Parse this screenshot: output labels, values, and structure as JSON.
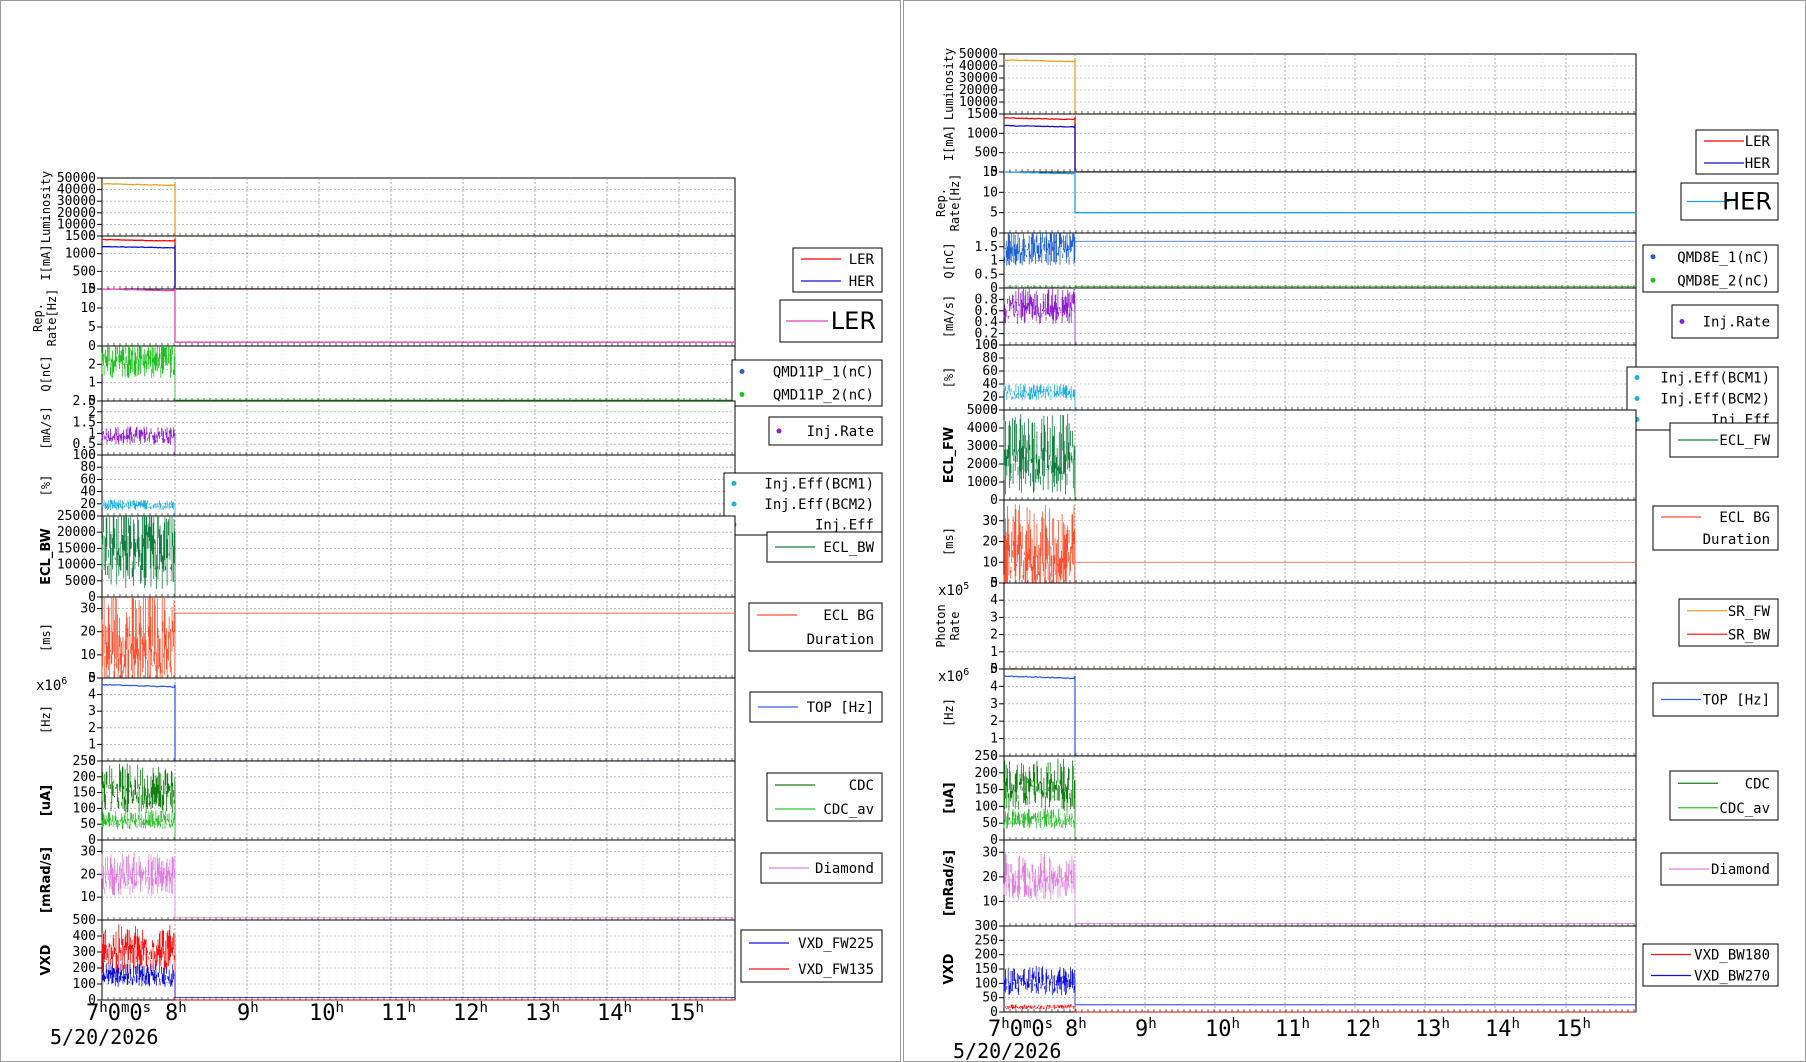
{
  "colors": {
    "luminosity": "#e8a020",
    "ler": "#ff0000",
    "her": "#1010c8",
    "rep_ler": "#e040c0",
    "rep_her": "#20a0e0",
    "q1": "#2060d0",
    "q2": "#20c020",
    "injrate": "#9020d0",
    "injeff": "#20b0e0",
    "ecl": "#108040",
    "eclbg": "#ff5030",
    "top": "#3060e0",
    "cdc": "#108010",
    "cdc_av": "#30c030",
    "diamond": "#e080e0",
    "vxd_a": "#1010e0",
    "vxd_b": "#ff1010",
    "sr_fw": "#f0a020",
    "sr_bw": "#ff2020"
  },
  "chart_data": [
    {
      "type": "line",
      "name": "left",
      "date_label": "5/20/2026",
      "x_ticks": [
        "7h0m0s",
        "8h",
        "9h",
        "10h",
        "11h",
        "12h",
        "13h",
        "14h",
        "15h"
      ],
      "panels": [
        {
          "id": "lum",
          "ylabel": "Luminosity",
          "ylim": [
            0,
            50000
          ],
          "yticks": [
            "50000",
            "40000",
            "30000",
            "20000",
            "10000",
            "0"
          ],
          "legend": [],
          "series": [
            {
              "color": "luminosity",
              "before": 45000,
              "after": 0
            }
          ]
        },
        {
          "id": "cur",
          "ylabel": "I[mA]",
          "ylim": [
            0,
            1500
          ],
          "yticks": [
            "1500",
            "1000",
            "500",
            "0"
          ],
          "legend": [
            {
              "label": "LER",
              "color": "ler"
            },
            {
              "label": "HER",
              "color": "her"
            }
          ],
          "series": [
            {
              "color": "ler",
              "before": 1400,
              "after": 0
            },
            {
              "color": "her",
              "before": 1200,
              "after": 0
            }
          ]
        },
        {
          "id": "rep",
          "ylabel": "Rep.\nRate[Hz]",
          "ylim": [
            0,
            15
          ],
          "yticks": [
            "15",
            "10",
            "5",
            "0"
          ],
          "legend": [
            {
              "label": "LER",
              "color": "rep_ler",
              "big": true
            }
          ],
          "series": [
            {
              "color": "rep_ler",
              "before": 15,
              "after": 1
            }
          ]
        },
        {
          "id": "q",
          "ylabel": "Q[nC]",
          "ylim": [
            0,
            3
          ],
          "yticks": [
            "2",
            "1",
            "0"
          ],
          "legend": [
            {
              "label": "QMD11P_1(nC)",
              "color": "q1",
              "dot": true
            },
            {
              "label": "QMD11P_2(nC)",
              "color": "q2",
              "dot": true
            }
          ],
          "series": [
            {
              "color": "q2",
              "before": 2.6,
              "after": 0.05
            }
          ]
        },
        {
          "id": "injr",
          "ylabel": "[mA/s]",
          "ylim": [
            0,
            2.5
          ],
          "yticks": [
            "2.5",
            "2",
            "1.5",
            "1",
            "0.5",
            "0"
          ],
          "legend": [
            {
              "label": "Inj.Rate",
              "color": "injrate",
              "dot": true
            }
          ],
          "series": [
            {
              "color": "injrate",
              "before": 1.0,
              "after": 0.0
            }
          ]
        },
        {
          "id": "eff",
          "ylabel": "[%]",
          "ylim": [
            0,
            100
          ],
          "yticks": [
            "100",
            "80",
            "60",
            "40",
            "20",
            "0"
          ],
          "legend": [
            {
              "label": "Inj.Eff(BCM1)",
              "color": "injeff",
              "dot": true
            },
            {
              "label": "Inj.Eff(BCM2)",
              "color": "injeff",
              "dot": true
            },
            {
              "label": "Inj.Eff",
              "color": "injeff",
              "dot": true
            }
          ],
          "series": [
            {
              "color": "injeff",
              "before": 20,
              "after": 0
            }
          ]
        },
        {
          "id": "ecl",
          "ylabel": "ECL_BW",
          "ylim": [
            0,
            25000
          ],
          "yticks": [
            "25000",
            "20000",
            "15000",
            "10000",
            "5000",
            "0"
          ],
          "legend": [
            {
              "label": "ECL_BW",
              "color": "ecl"
            }
          ],
          "series": [
            {
              "color": "ecl",
              "before": 20000,
              "after": 0
            }
          ]
        },
        {
          "id": "eclbg",
          "ylabel": "[ms]",
          "ylim": [
            0,
            35
          ],
          "yticks": [
            "30",
            "20",
            "10",
            "0"
          ],
          "legend": [
            {
              "label": "ECL BG",
              "color": "eclbg"
            },
            {
              "label": "Duration",
              "color": ""
            }
          ],
          "series": [
            {
              "color": "eclbg",
              "before": 20,
              "after": 28
            }
          ]
        },
        {
          "id": "top",
          "ylabel": "[Hz]",
          "mult": "x10^6",
          "ylim": [
            0,
            5
          ],
          "yticks": [
            "5",
            "4",
            "3",
            "2",
            "1",
            "0"
          ],
          "legend": [
            {
              "label": "TOP [Hz]",
              "color": "top"
            }
          ],
          "series": [
            {
              "color": "top",
              "before": 4.6,
              "after": 0
            }
          ]
        },
        {
          "id": "cdc",
          "ylabel": "[uA]",
          "ylim": [
            0,
            250
          ],
          "yticks": [
            "250",
            "200",
            "150",
            "100",
            "50",
            "0"
          ],
          "legend": [
            {
              "label": "CDC",
              "color": "cdc"
            },
            {
              "label": "CDC_av",
              "color": "cdc_av"
            }
          ],
          "series": [
            {
              "color": "cdc",
              "before": 180,
              "after": 0
            },
            {
              "color": "cdc_av",
              "before": 70,
              "after": 0
            }
          ]
        },
        {
          "id": "dia",
          "ylabel": "[mRad/s]",
          "ylim": [
            0,
            35
          ],
          "yticks": [
            "30",
            "20",
            "10"
          ],
          "legend": [
            {
              "label": "Diamond",
              "color": "diamond"
            }
          ],
          "series": [
            {
              "color": "diamond",
              "before": 22,
              "after": 1
            }
          ]
        },
        {
          "id": "vxd",
          "ylabel": "VXD",
          "ylim": [
            0,
            500
          ],
          "yticks": [
            "500",
            "400",
            "300",
            "200",
            "100",
            "0"
          ],
          "legend": [
            {
              "label": "VXD_FW225",
              "color": "vxd_a"
            },
            {
              "label": "VXD_FW135",
              "color": "vxd_b"
            }
          ],
          "series": [
            {
              "color": "vxd_b",
              "before": 350,
              "after": 0
            },
            {
              "color": "vxd_a",
              "before": 170,
              "after": 15
            }
          ]
        }
      ]
    },
    {
      "type": "line",
      "name": "right",
      "date_label": "5/20/2026",
      "x_ticks": [
        "7h0m0s",
        "8h",
        "9h",
        "10h",
        "11h",
        "12h",
        "13h",
        "14h",
        "15h"
      ],
      "panels": [
        {
          "id": "lum",
          "ylabel": "Luminosity",
          "ylim": [
            0,
            50000
          ],
          "yticks": [
            "50000",
            "40000",
            "30000",
            "20000",
            "10000",
            "0"
          ],
          "legend": [],
          "series": [
            {
              "color": "luminosity",
              "before": 45000,
              "after": 0
            }
          ]
        },
        {
          "id": "cur",
          "ylabel": "I[mA]",
          "ylim": [
            0,
            1500
          ],
          "yticks": [
            "1500",
            "1000",
            "500",
            "0"
          ],
          "legend": [
            {
              "label": "LER",
              "color": "ler"
            },
            {
              "label": "HER",
              "color": "her"
            }
          ],
          "series": [
            {
              "color": "ler",
              "before": 1400,
              "after": 0
            },
            {
              "color": "her",
              "before": 1200,
              "after": 0
            }
          ]
        },
        {
          "id": "rep",
          "ylabel": "Rep.\nRate[Hz]",
          "ylim": [
            0,
            15
          ],
          "yticks": [
            "15",
            "10",
            "5",
            "0"
          ],
          "legend": [
            {
              "label": "HER",
              "color": "rep_her",
              "big": true
            }
          ],
          "series": [
            {
              "color": "rep_her",
              "before": 15,
              "after": 5
            }
          ]
        },
        {
          "id": "q",
          "ylabel": "Q[nC]",
          "ylim": [
            0,
            2
          ],
          "yticks": [
            "1.5",
            "1",
            "0.5",
            "0"
          ],
          "legend": [
            {
              "label": "QMD8E_1(nC)",
              "color": "q1",
              "dot": true
            },
            {
              "label": "QMD8E_2(nC)",
              "color": "q2",
              "dot": true
            }
          ],
          "series": [
            {
              "color": "q1",
              "before": 1.7,
              "after": 1.7
            },
            {
              "color": "q2",
              "before": 0.05,
              "after": 0.05
            }
          ]
        },
        {
          "id": "injr",
          "ylabel": "[mA/s]",
          "ylim": [
            0,
            1
          ],
          "yticks": [
            "0.8",
            "0.6",
            "0.4",
            "0.2",
            "0"
          ],
          "legend": [
            {
              "label": "Inj.Rate",
              "color": "injrate",
              "dot": true
            }
          ],
          "series": [
            {
              "color": "injrate",
              "before": 0.75,
              "after": 0.0
            }
          ]
        },
        {
          "id": "eff",
          "ylabel": "[%]",
          "ylim": [
            0,
            100
          ],
          "yticks": [
            "100",
            "80",
            "60",
            "40",
            "20",
            "0"
          ],
          "legend": [
            {
              "label": "Inj.Eff(BCM1)",
              "color": "injeff",
              "dot": true
            },
            {
              "label": "Inj.Eff(BCM2)",
              "color": "injeff",
              "dot": true
            },
            {
              "label": "Inj.Eff",
              "color": "injeff",
              "dot": true
            }
          ],
          "series": [
            {
              "color": "injeff",
              "before": 30,
              "after": 0
            }
          ]
        },
        {
          "id": "ecl",
          "ylabel": "ECL_FW",
          "ylim": [
            0,
            5000
          ],
          "yticks": [
            "5000",
            "4000",
            "3000",
            "2000",
            "1000",
            "0"
          ],
          "legend": [
            {
              "label": "ECL_FW",
              "color": "ecl"
            }
          ],
          "series": [
            {
              "color": "ecl",
              "before": 3000,
              "after": 0
            }
          ]
        },
        {
          "id": "eclbg",
          "ylabel": "[ms]",
          "ylim": [
            0,
            40
          ],
          "yticks": [
            "30",
            "20",
            "10",
            "0"
          ],
          "legend": [
            {
              "label": "ECL BG",
              "color": "eclbg"
            },
            {
              "label": "Duration",
              "color": ""
            }
          ],
          "series": [
            {
              "color": "eclbg",
              "before": 20,
              "after": 10
            }
          ]
        },
        {
          "id": "sr",
          "ylabel": "Photon\nRate",
          "mult": "x10^5",
          "ylim": [
            0,
            5
          ],
          "yticks": [
            "5",
            "4",
            "3",
            "2",
            "1",
            "0"
          ],
          "legend": [
            {
              "label": "SR_FW",
              "color": "sr_fw"
            },
            {
              "label": "SR_BW",
              "color": "sr_bw"
            }
          ],
          "series": [
            {
              "color": "sr_fw",
              "before": 0,
              "after": 0
            }
          ]
        },
        {
          "id": "top",
          "ylabel": "[Hz]",
          "mult": "x10^6",
          "ylim": [
            0,
            5
          ],
          "yticks": [
            "5",
            "4",
            "3",
            "2",
            "1",
            "0"
          ],
          "legend": [
            {
              "label": "TOP [Hz]",
              "color": "top"
            }
          ],
          "series": [
            {
              "color": "top",
              "before": 4.6,
              "after": 0
            }
          ]
        },
        {
          "id": "cdc",
          "ylabel": "[uA]",
          "ylim": [
            0,
            250
          ],
          "yticks": [
            "250",
            "200",
            "150",
            "100",
            "50",
            "0"
          ],
          "legend": [
            {
              "label": "CDC",
              "color": "cdc"
            },
            {
              "label": "CDC_av",
              "color": "cdc_av"
            }
          ],
          "series": [
            {
              "color": "cdc",
              "before": 180,
              "after": 0
            },
            {
              "color": "cdc_av",
              "before": 70,
              "after": 0
            }
          ]
        },
        {
          "id": "dia",
          "ylabel": "[mRad/s]",
          "ylim": [
            0,
            35
          ],
          "yticks": [
            "30",
            "20",
            "10"
          ],
          "legend": [
            {
              "label": "Diamond",
              "color": "diamond"
            }
          ],
          "series": [
            {
              "color": "diamond",
              "before": 22,
              "after": 1
            }
          ]
        },
        {
          "id": "vxd",
          "ylabel": "VXD",
          "ylim": [
            0,
            300
          ],
          "yticks": [
            "300",
            "250",
            "200",
            "150",
            "100",
            "50",
            "0"
          ],
          "legend": [
            {
              "label": "VXD_BW180",
              "color": "vxd_b"
            },
            {
              "label": "VXD_BW270",
              "color": "vxd_a"
            }
          ],
          "series": [
            {
              "color": "vxd_a",
              "before": 120,
              "after": 25
            },
            {
              "color": "vxd_b",
              "before": 20,
              "after": 0
            }
          ]
        }
      ]
    }
  ]
}
